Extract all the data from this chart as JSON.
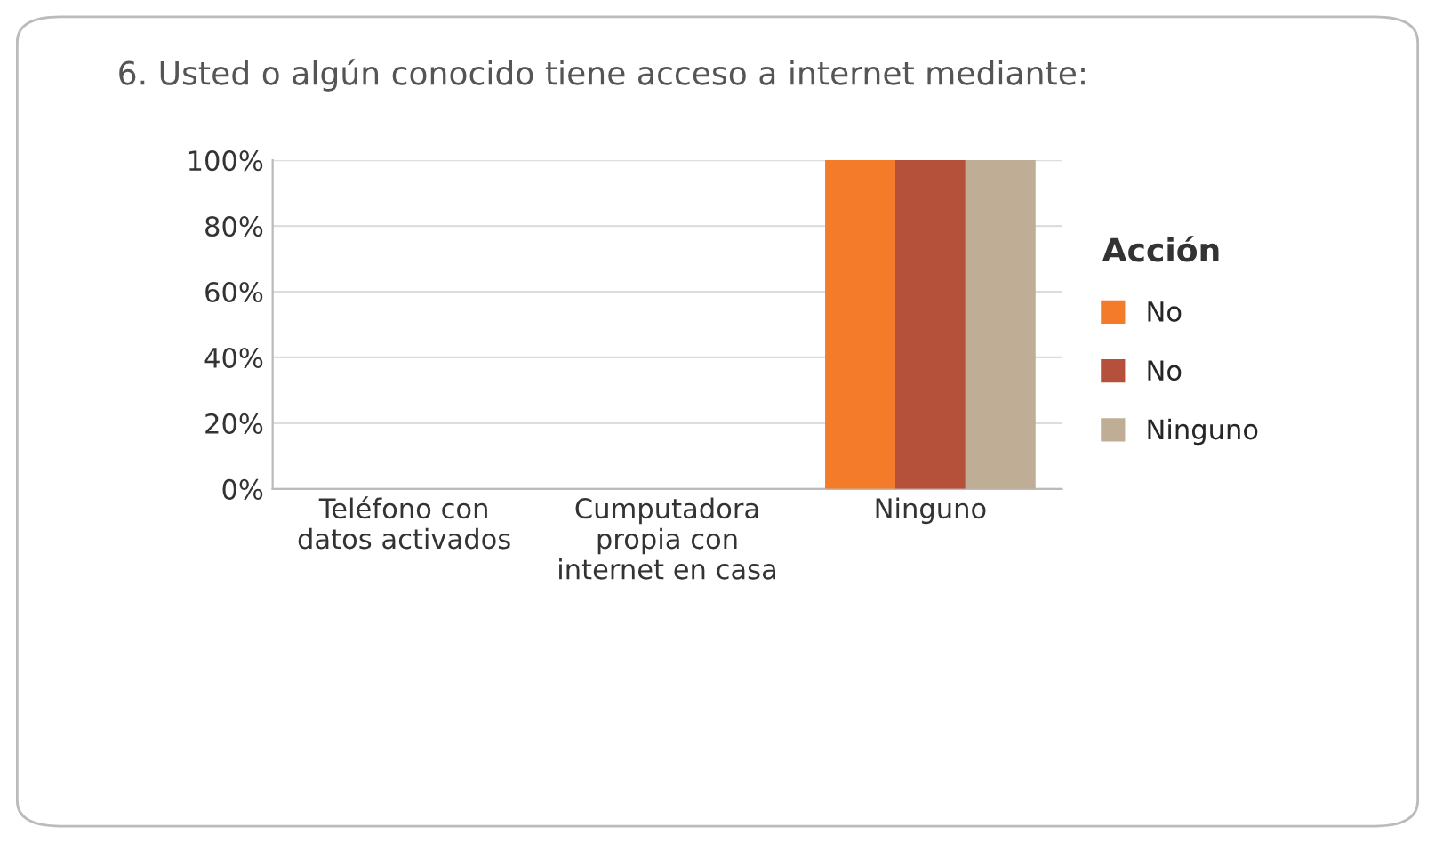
{
  "chart_data": {
    "type": "bar",
    "title": "6. Usted o algún conocido tiene acceso a internet mediante:",
    "categories": [
      "Teléfono con\ndatos activados",
      "Cumputadora\npropia con\ninternet en casa",
      "Ninguno"
    ],
    "series": [
      {
        "name": "No",
        "color": "#f47b2a",
        "values": [
          0,
          0,
          100
        ]
      },
      {
        "name": "No",
        "color": "#b5503a",
        "values": [
          0,
          0,
          100
        ]
      },
      {
        "name": "Ninguno",
        "color": "#bfae95",
        "values": [
          0,
          0,
          100
        ]
      }
    ],
    "ylim": [
      0,
      100
    ],
    "yticks": [
      {
        "value": 0,
        "label": "0%"
      },
      {
        "value": 20,
        "label": "20%"
      },
      {
        "value": 40,
        "label": "40%"
      },
      {
        "value": 60,
        "label": "60%"
      },
      {
        "value": 80,
        "label": "80%"
      },
      {
        "value": 100,
        "label": "100%"
      }
    ],
    "grid": "y",
    "legend": "right",
    "legend_title": "Acción"
  }
}
